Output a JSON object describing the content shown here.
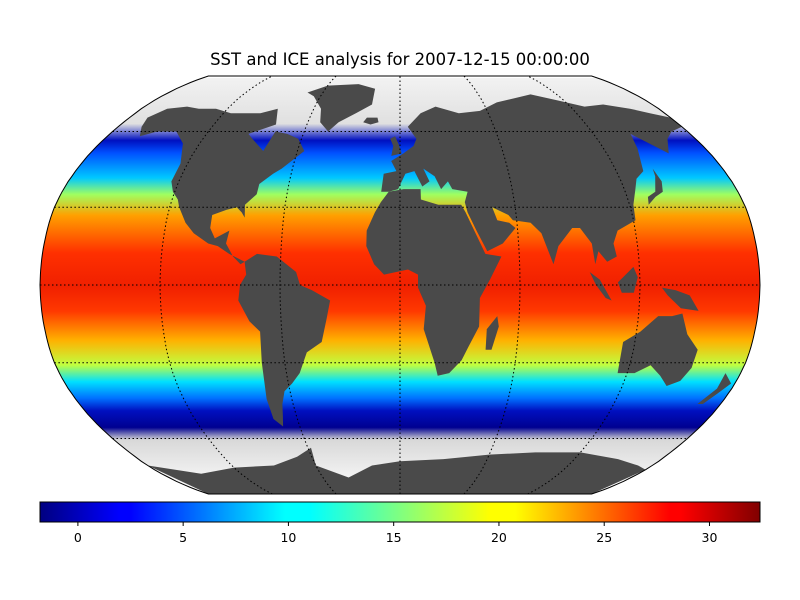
{
  "title": "SST and ICE analysis for 2007-12-15 00:00:00",
  "colors": {
    "land": "#4a4a4a",
    "background": "#ffffff",
    "graticule": "#000000"
  },
  "map": {
    "projection": "Robinson",
    "graticule_style": "dotted",
    "parallels_deg": [
      -60,
      -30,
      0,
      30,
      60
    ],
    "meridians_deg": [
      -120,
      -60,
      0,
      60,
      120
    ]
  },
  "colorbar": {
    "colormap": "jet",
    "vmin": -1.8,
    "vmax": 32.4,
    "ticks": [
      0,
      5,
      10,
      15,
      20,
      25,
      30
    ],
    "tick_labels": [
      "0",
      "5",
      "10",
      "15",
      "20",
      "25",
      "30"
    ]
  }
}
